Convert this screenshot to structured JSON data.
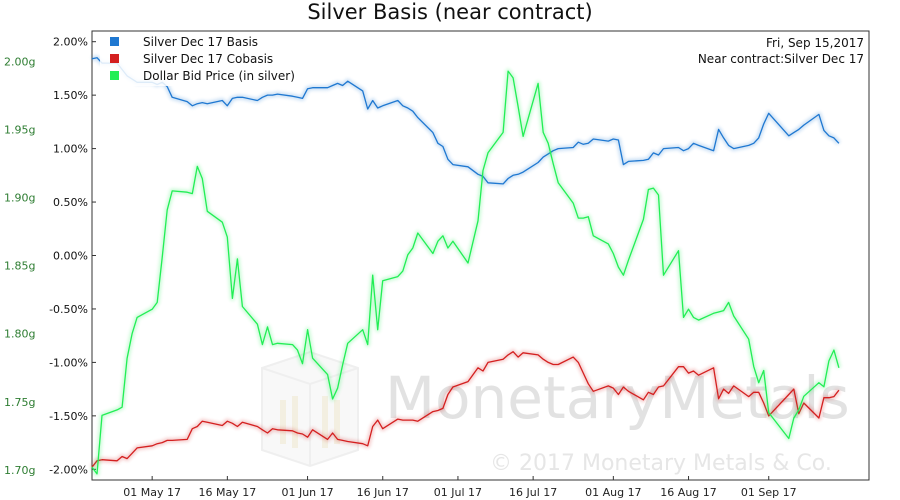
{
  "chart_data": {
    "type": "line",
    "title": "Silver Basis (near contract)",
    "info": {
      "date": "Fri, Sep 15,2017",
      "contract": "Near contract:Silver Dec 17"
    },
    "watermark": {
      "brand": "MonetaryMetals",
      "copyright": "© 2017 Monetary Metals & Co."
    },
    "legend_position": "top-left",
    "grid": false,
    "y_left": {
      "ticks": [
        "1.70g",
        "1.75g",
        "1.80g",
        "1.85g",
        "1.90g",
        "1.95g",
        "2.00g"
      ],
      "range": [
        1.6925,
        2.0225
      ],
      "color": "#2e7d32"
    },
    "y_right": {
      "ticks": [
        "-2.00%",
        "-1.50%",
        "-1.00%",
        "-0.50%",
        "0.00%",
        "0.50%",
        "1.00%",
        "1.50%",
        "2.00%"
      ],
      "range": [
        -2.1,
        2.1
      ]
    },
    "x_axis": {
      "ticks": [
        "01 May 17",
        "16 May 17",
        "01 Jun 17",
        "16 Jun 17",
        "01 Jul 17",
        "16 Jul 17",
        "01 Aug 17",
        "16 Aug 17",
        "01 Sep 17"
      ],
      "range": [
        "2017-04-19",
        "2017-09-21"
      ]
    },
    "series": [
      {
        "name": "Silver Dec 17 Basis",
        "color": "#1f78d1",
        "axis": "right",
        "x": [
          "2017-04-19",
          "2017-04-20",
          "2017-04-21",
          "2017-04-24",
          "2017-04-25",
          "2017-04-26",
          "2017-04-27",
          "2017-04-28",
          "2017-05-01",
          "2017-05-02",
          "2017-05-03",
          "2017-05-04",
          "2017-05-05",
          "2017-05-08",
          "2017-05-09",
          "2017-05-10",
          "2017-05-11",
          "2017-05-12",
          "2017-05-15",
          "2017-05-16",
          "2017-05-17",
          "2017-05-18",
          "2017-05-19",
          "2017-05-22",
          "2017-05-23",
          "2017-05-24",
          "2017-05-25",
          "2017-05-26",
          "2017-05-29",
          "2017-05-30",
          "2017-05-31",
          "2017-06-01",
          "2017-06-02",
          "2017-06-05",
          "2017-06-06",
          "2017-06-07",
          "2017-06-08",
          "2017-06-09",
          "2017-06-12",
          "2017-06-13",
          "2017-06-14",
          "2017-06-15",
          "2017-06-16",
          "2017-06-19",
          "2017-06-20",
          "2017-06-21",
          "2017-06-22",
          "2017-06-23",
          "2017-06-26",
          "2017-06-27",
          "2017-06-28",
          "2017-06-29",
          "2017-06-30",
          "2017-07-03",
          "2017-07-05",
          "2017-07-06",
          "2017-07-07",
          "2017-07-10",
          "2017-07-11",
          "2017-07-12",
          "2017-07-13",
          "2017-07-14",
          "2017-07-17",
          "2017-07-18",
          "2017-07-19",
          "2017-07-20",
          "2017-07-21",
          "2017-07-24",
          "2017-07-25",
          "2017-07-26",
          "2017-07-27",
          "2017-07-28",
          "2017-07-31",
          "2017-08-01",
          "2017-08-02",
          "2017-08-03",
          "2017-08-04",
          "2017-08-07",
          "2017-08-08",
          "2017-08-09",
          "2017-08-10",
          "2017-08-11",
          "2017-08-14",
          "2017-08-15",
          "2017-08-16",
          "2017-08-17",
          "2017-08-18",
          "2017-08-21",
          "2017-08-22",
          "2017-08-23",
          "2017-08-24",
          "2017-08-25",
          "2017-08-28",
          "2017-08-29",
          "2017-08-30",
          "2017-08-31",
          "2017-09-01",
          "2017-09-05",
          "2017-09-06",
          "2017-09-07",
          "2017-09-08",
          "2017-09-11",
          "2017-09-12",
          "2017-09-13",
          "2017-09-14",
          "2017-09-15"
        ],
        "values": [
          1.84,
          1.85,
          1.8,
          1.8,
          1.74,
          1.68,
          1.65,
          1.62,
          1.62,
          1.6,
          1.62,
          1.58,
          1.48,
          1.44,
          1.4,
          1.42,
          1.43,
          1.42,
          1.45,
          1.4,
          1.47,
          1.48,
          1.48,
          1.45,
          1.48,
          1.5,
          1.5,
          1.51,
          1.49,
          1.48,
          1.47,
          1.56,
          1.57,
          1.57,
          1.59,
          1.61,
          1.59,
          1.63,
          1.54,
          1.37,
          1.45,
          1.38,
          1.4,
          1.45,
          1.4,
          1.38,
          1.35,
          1.29,
          1.15,
          1.05,
          1.02,
          0.9,
          0.85,
          0.83,
          0.76,
          0.74,
          0.68,
          0.67,
          0.72,
          0.75,
          0.76,
          0.78,
          0.87,
          0.92,
          0.95,
          0.98,
          1.0,
          1.01,
          1.06,
          1.04,
          1.05,
          1.09,
          1.07,
          1.09,
          1.08,
          0.85,
          0.88,
          0.89,
          0.9,
          0.96,
          0.94,
          1.0,
          1.01,
          0.98,
          1.0,
          1.05,
          1.03,
          0.98,
          1.18,
          1.1,
          1.03,
          1.0,
          1.03,
          1.05,
          1.1,
          1.23,
          1.33,
          1.12,
          1.15,
          1.18,
          1.22,
          1.32,
          1.17,
          1.12,
          1.1,
          1.05
        ]
      },
      {
        "name": "Silver Dec 17 Cobasis",
        "color": "#d42020",
        "axis": "right",
        "x": [
          "2017-04-19",
          "2017-04-20",
          "2017-04-21",
          "2017-04-24",
          "2017-04-25",
          "2017-04-26",
          "2017-04-27",
          "2017-04-28",
          "2017-05-01",
          "2017-05-02",
          "2017-05-03",
          "2017-05-04",
          "2017-05-05",
          "2017-05-08",
          "2017-05-09",
          "2017-05-10",
          "2017-05-11",
          "2017-05-12",
          "2017-05-15",
          "2017-05-16",
          "2017-05-17",
          "2017-05-18",
          "2017-05-19",
          "2017-05-22",
          "2017-05-23",
          "2017-05-24",
          "2017-05-25",
          "2017-05-26",
          "2017-05-29",
          "2017-05-30",
          "2017-05-31",
          "2017-06-01",
          "2017-06-02",
          "2017-06-05",
          "2017-06-06",
          "2017-06-07",
          "2017-06-08",
          "2017-06-09",
          "2017-06-12",
          "2017-06-13",
          "2017-06-14",
          "2017-06-15",
          "2017-06-16",
          "2017-06-19",
          "2017-06-20",
          "2017-06-21",
          "2017-06-22",
          "2017-06-23",
          "2017-06-26",
          "2017-06-27",
          "2017-06-28",
          "2017-06-29",
          "2017-06-30",
          "2017-07-03",
          "2017-07-05",
          "2017-07-06",
          "2017-07-07",
          "2017-07-10",
          "2017-07-11",
          "2017-07-12",
          "2017-07-13",
          "2017-07-14",
          "2017-07-17",
          "2017-07-18",
          "2017-07-19",
          "2017-07-20",
          "2017-07-21",
          "2017-07-24",
          "2017-07-25",
          "2017-07-26",
          "2017-07-27",
          "2017-07-28",
          "2017-07-31",
          "2017-08-01",
          "2017-08-02",
          "2017-08-03",
          "2017-08-04",
          "2017-08-07",
          "2017-08-08",
          "2017-08-09",
          "2017-08-10",
          "2017-08-11",
          "2017-08-14",
          "2017-08-15",
          "2017-08-16",
          "2017-08-17",
          "2017-08-18",
          "2017-08-21",
          "2017-08-22",
          "2017-08-23",
          "2017-08-24",
          "2017-08-25",
          "2017-08-28",
          "2017-08-29",
          "2017-08-30",
          "2017-08-31",
          "2017-09-01",
          "2017-09-05",
          "2017-09-06",
          "2017-09-07",
          "2017-09-08",
          "2017-09-11",
          "2017-09-12",
          "2017-09-13",
          "2017-09-14",
          "2017-09-15"
        ],
        "values": [
          -1.98,
          -1.92,
          -1.91,
          -1.92,
          -1.88,
          -1.9,
          -1.85,
          -1.8,
          -1.78,
          -1.76,
          -1.75,
          -1.73,
          -1.73,
          -1.72,
          -1.62,
          -1.6,
          -1.55,
          -1.56,
          -1.59,
          -1.55,
          -1.57,
          -1.6,
          -1.56,
          -1.6,
          -1.63,
          -1.66,
          -1.62,
          -1.63,
          -1.64,
          -1.66,
          -1.67,
          -1.7,
          -1.63,
          -1.72,
          -1.66,
          -1.72,
          -1.73,
          -1.74,
          -1.76,
          -1.78,
          -1.6,
          -1.54,
          -1.62,
          -1.53,
          -1.54,
          -1.54,
          -1.54,
          -1.55,
          -1.46,
          -1.45,
          -1.43,
          -1.3,
          -1.23,
          -1.18,
          -1.05,
          -1.08,
          -1.0,
          -0.97,
          -0.93,
          -0.9,
          -0.95,
          -0.91,
          -0.93,
          -0.97,
          -1.0,
          -1.02,
          -1.02,
          -0.95,
          -1.0,
          -1.1,
          -1.2,
          -1.27,
          -1.22,
          -1.24,
          -1.3,
          -1.23,
          -1.27,
          -1.35,
          -1.28,
          -1.3,
          -1.23,
          -1.22,
          -1.04,
          -1.04,
          -1.1,
          -1.08,
          -1.12,
          -1.05,
          -1.34,
          -1.25,
          -1.29,
          -1.22,
          -1.32,
          -1.28,
          -1.28,
          -1.38,
          -1.5,
          -1.3,
          -1.25,
          -1.48,
          -1.38,
          -1.52,
          -1.33,
          -1.33,
          -1.32,
          -1.26
        ]
      },
      {
        "name": "Dollar Bid Price (in silver)",
        "color": "#22ee55",
        "axis": "left",
        "x": [
          "2017-04-19",
          "2017-04-20",
          "2017-04-21",
          "2017-04-24",
          "2017-04-25",
          "2017-04-26",
          "2017-04-27",
          "2017-04-28",
          "2017-05-01",
          "2017-05-02",
          "2017-05-03",
          "2017-05-04",
          "2017-05-05",
          "2017-05-08",
          "2017-05-09",
          "2017-05-10",
          "2017-05-11",
          "2017-05-12",
          "2017-05-15",
          "2017-05-16",
          "2017-05-17",
          "2017-05-18",
          "2017-05-19",
          "2017-05-22",
          "2017-05-23",
          "2017-05-24",
          "2017-05-25",
          "2017-05-26",
          "2017-05-29",
          "2017-05-30",
          "2017-05-31",
          "2017-06-01",
          "2017-06-02",
          "2017-06-05",
          "2017-06-06",
          "2017-06-07",
          "2017-06-08",
          "2017-06-09",
          "2017-06-12",
          "2017-06-13",
          "2017-06-14",
          "2017-06-15",
          "2017-06-16",
          "2017-06-19",
          "2017-06-20",
          "2017-06-21",
          "2017-06-22",
          "2017-06-23",
          "2017-06-26",
          "2017-06-27",
          "2017-06-28",
          "2017-06-29",
          "2017-06-30",
          "2017-07-03",
          "2017-07-05",
          "2017-07-06",
          "2017-07-07",
          "2017-07-10",
          "2017-07-11",
          "2017-07-12",
          "2017-07-13",
          "2017-07-14",
          "2017-07-17",
          "2017-07-18",
          "2017-07-19",
          "2017-07-20",
          "2017-07-21",
          "2017-07-24",
          "2017-07-25",
          "2017-07-26",
          "2017-07-27",
          "2017-07-28",
          "2017-07-31",
          "2017-08-01",
          "2017-08-02",
          "2017-08-03",
          "2017-08-04",
          "2017-08-07",
          "2017-08-08",
          "2017-08-09",
          "2017-08-10",
          "2017-08-11",
          "2017-08-14",
          "2017-08-15",
          "2017-08-16",
          "2017-08-17",
          "2017-08-18",
          "2017-08-21",
          "2017-08-22",
          "2017-08-23",
          "2017-08-24",
          "2017-08-25",
          "2017-08-28",
          "2017-08-29",
          "2017-08-30",
          "2017-08-31",
          "2017-09-01",
          "2017-09-05",
          "2017-09-06",
          "2017-09-07",
          "2017-09-08",
          "2017-09-11",
          "2017-09-12",
          "2017-09-13",
          "2017-09-14",
          "2017-09-15"
        ],
        "values": [
          1.702,
          1.697,
          1.74,
          1.744,
          1.746,
          1.782,
          1.8,
          1.812,
          1.818,
          1.823,
          1.856,
          1.891,
          1.905,
          1.904,
          1.903,
          1.923,
          1.914,
          1.89,
          1.882,
          1.871,
          1.826,
          1.855,
          1.82,
          1.807,
          1.792,
          1.805,
          1.792,
          1.793,
          1.792,
          1.788,
          1.778,
          1.803,
          1.782,
          1.77,
          1.752,
          1.76,
          1.777,
          1.793,
          1.803,
          1.792,
          1.843,
          1.803,
          1.839,
          1.842,
          1.846,
          1.858,
          1.863,
          1.874,
          1.859,
          1.868,
          1.872,
          1.863,
          1.868,
          1.852,
          1.883,
          1.92,
          1.933,
          1.948,
          1.993,
          1.988,
          1.967,
          1.945,
          1.984,
          1.948,
          1.94,
          1.925,
          1.911,
          1.896,
          1.885,
          1.885,
          1.886,
          1.872,
          1.866,
          1.859,
          1.849,
          1.843,
          1.854,
          1.884,
          1.906,
          1.907,
          1.902,
          1.843,
          1.861,
          1.812,
          1.818,
          1.812,
          1.81,
          1.815,
          1.816,
          1.817,
          1.823,
          1.813,
          1.796,
          1.776,
          1.764,
          1.773,
          1.742,
          1.723,
          1.738,
          1.744,
          1.754,
          1.764,
          1.761,
          1.78,
          1.788,
          1.775
        ]
      }
    ]
  }
}
